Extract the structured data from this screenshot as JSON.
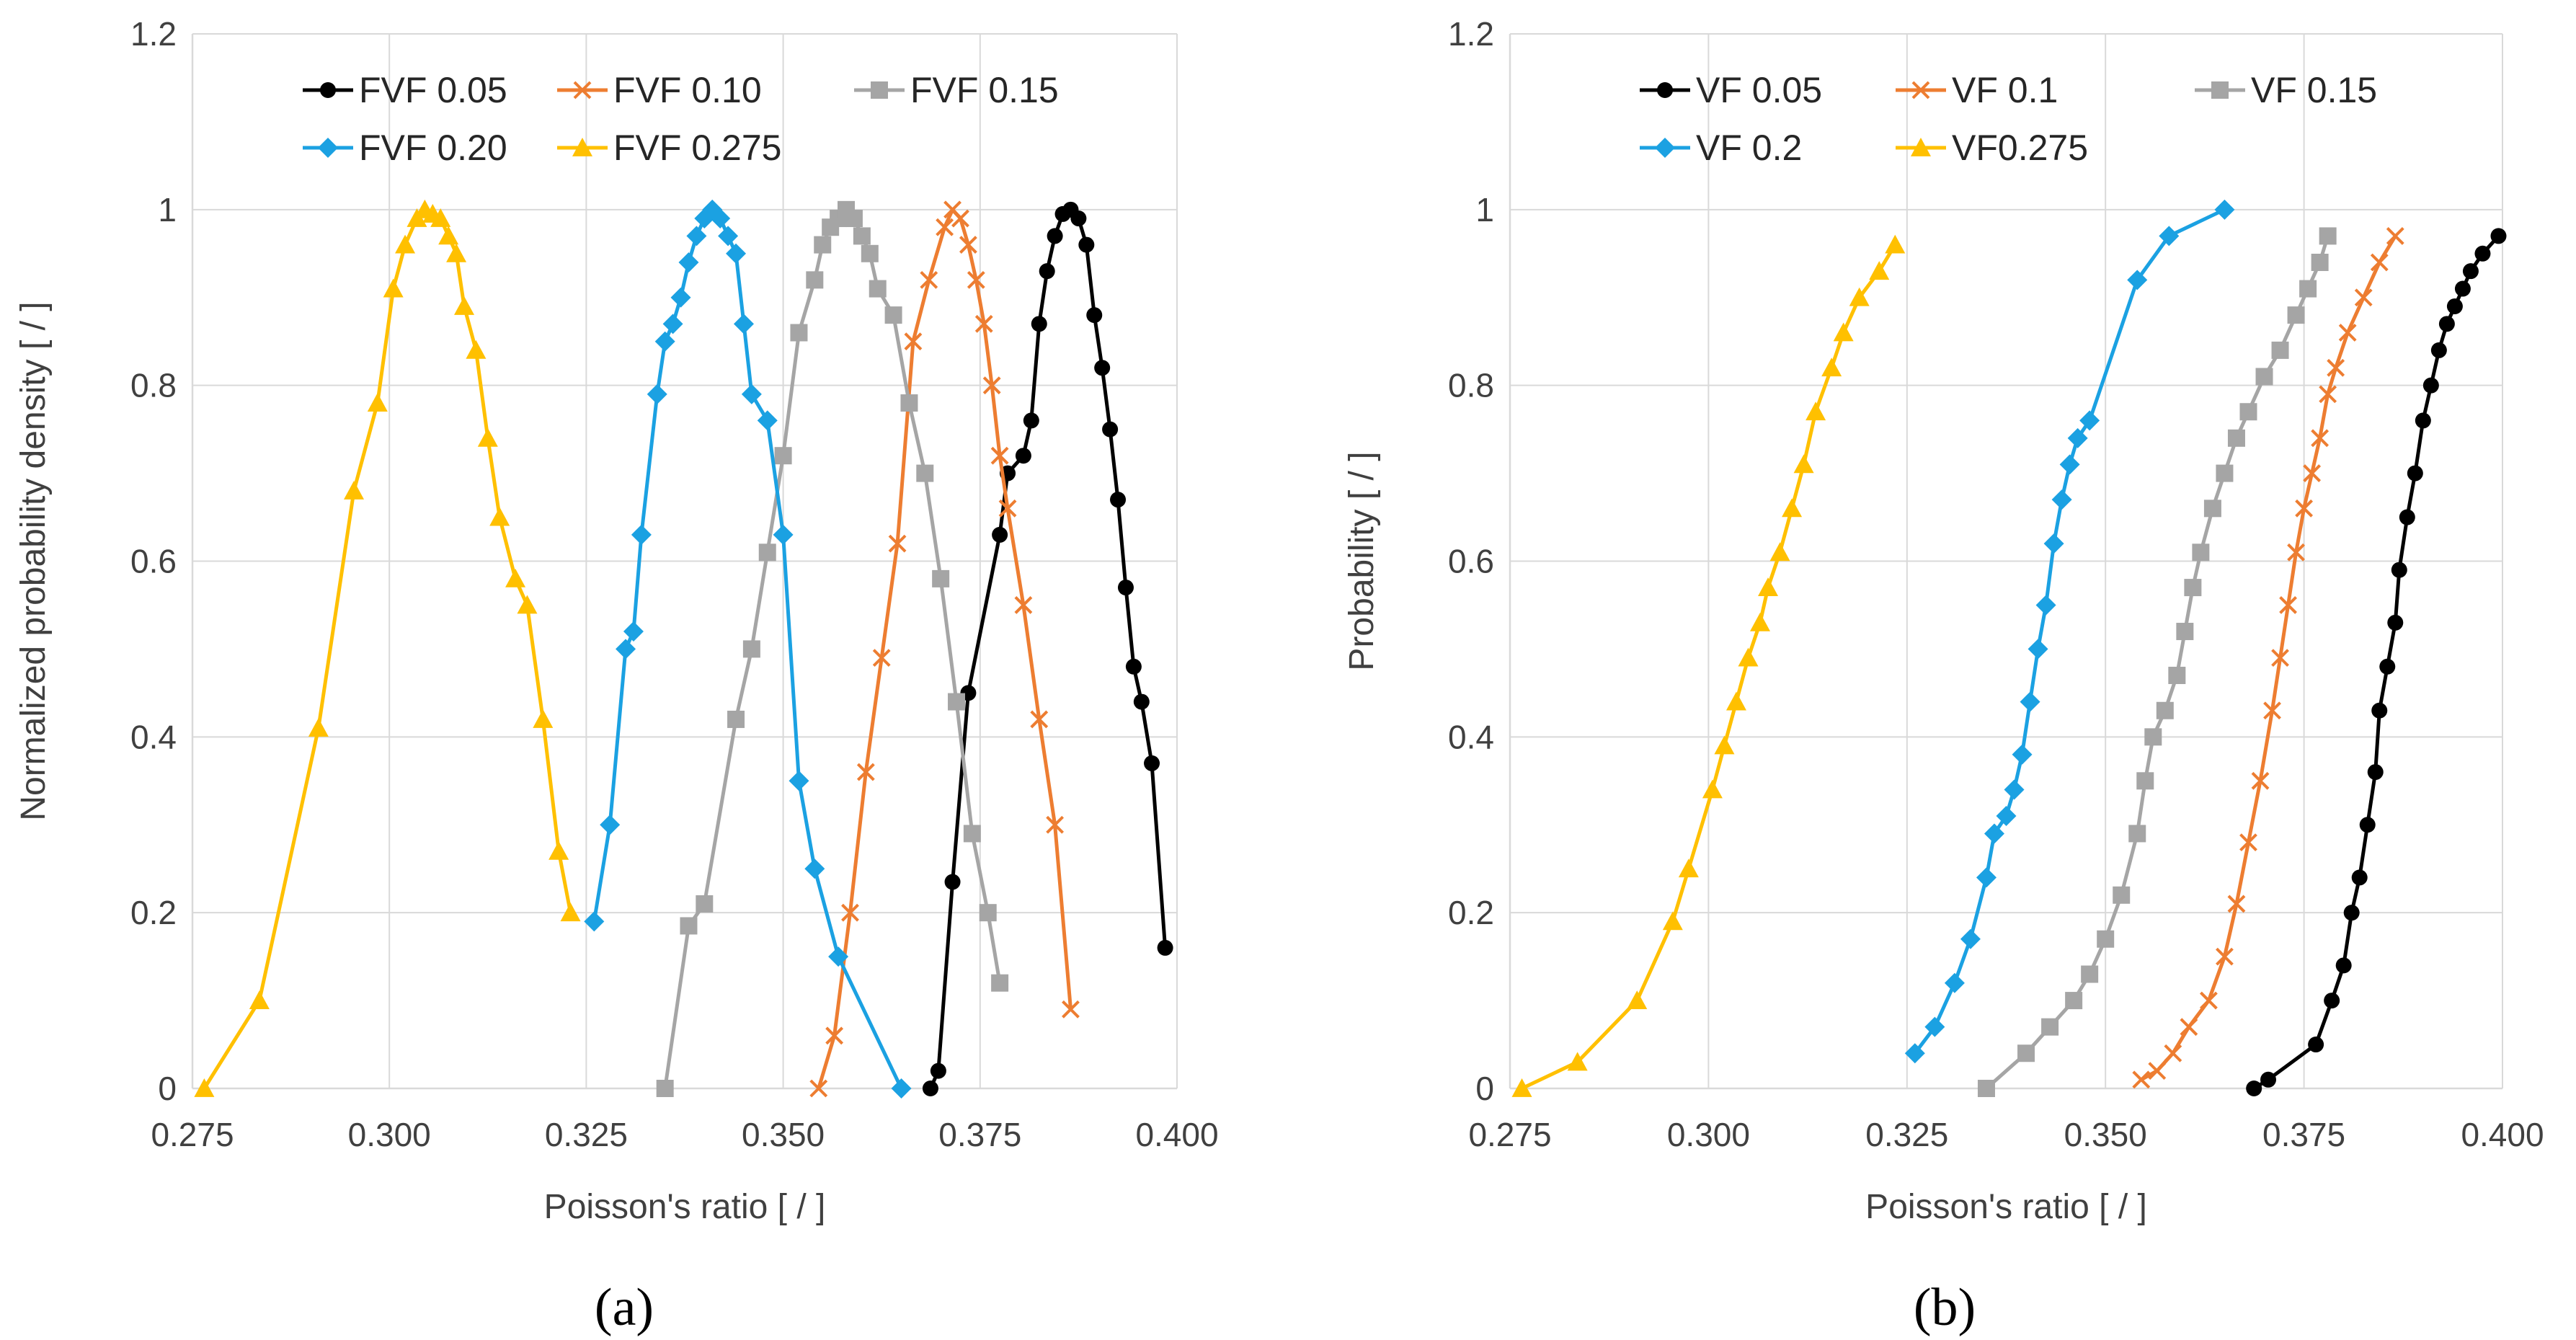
{
  "colors": {
    "black": "#000000",
    "orange": "#ED7D31",
    "gray": "#A5A5A5",
    "blue": "#1BA1E2",
    "gold": "#FFC000"
  },
  "captions": [
    "(a)",
    "(b)"
  ],
  "chart_data": [
    {
      "type": "line",
      "caption": "(a)",
      "title": "",
      "xlabel": "Poisson's ratio [ / ]",
      "ylabel": "Normalized probability density [ / ]",
      "xlim": [
        0.275,
        0.4
      ],
      "ylim": [
        0,
        1.2
      ],
      "xticks": [
        "0.275",
        "0.300",
        "0.325",
        "0.350",
        "0.375",
        "0.400"
      ],
      "yticks": [
        "0",
        "0.2",
        "0.4",
        "0.6",
        "0.8",
        "1",
        "1.2"
      ],
      "grid": true,
      "legend_position": "top",
      "series": [
        {
          "name": "FVF 0.05",
          "color": "#000000",
          "marker": "circle",
          "x": [
            0.3687,
            0.3697,
            0.3715,
            0.3735,
            0.3775,
            0.3785,
            0.3805,
            0.3815,
            0.3825,
            0.3835,
            0.3845,
            0.3855,
            0.3865,
            0.3875,
            0.3885,
            0.3895,
            0.3905,
            0.3915,
            0.3925,
            0.3935,
            0.3945,
            0.3955,
            0.3968,
            0.3985
          ],
          "y": [
            0.0,
            0.02,
            0.235,
            0.45,
            0.63,
            0.7,
            0.72,
            0.76,
            0.87,
            0.93,
            0.97,
            0.995,
            1.0,
            0.99,
            0.96,
            0.88,
            0.82,
            0.75,
            0.67,
            0.57,
            0.48,
            0.44,
            0.37,
            0.16
          ]
        },
        {
          "name": "FVF 0.10",
          "color": "#ED7D31",
          "marker": "x",
          "x": [
            0.3545,
            0.3565,
            0.3585,
            0.3605,
            0.3625,
            0.3645,
            0.3665,
            0.3685,
            0.3705,
            0.3715,
            0.3725,
            0.3735,
            0.3745,
            0.3755,
            0.3765,
            0.3775,
            0.3785,
            0.3805,
            0.3825,
            0.3845,
            0.3865
          ],
          "y": [
            0.0,
            0.06,
            0.2,
            0.36,
            0.49,
            0.62,
            0.85,
            0.92,
            0.98,
            1.0,
            0.99,
            0.96,
            0.92,
            0.87,
            0.8,
            0.72,
            0.66,
            0.55,
            0.42,
            0.3,
            0.09
          ]
        },
        {
          "name": "FVF 0.15",
          "color": "#A5A5A5",
          "marker": "square",
          "x": [
            0.335,
            0.338,
            0.34,
            0.344,
            0.346,
            0.348,
            0.35,
            0.352,
            0.354,
            0.355,
            0.356,
            0.357,
            0.358,
            0.359,
            0.36,
            0.361,
            0.362,
            0.364,
            0.366,
            0.368,
            0.37,
            0.372,
            0.374,
            0.376,
            0.3775
          ],
          "y": [
            0.0,
            0.185,
            0.21,
            0.42,
            0.5,
            0.61,
            0.72,
            0.86,
            0.92,
            0.96,
            0.98,
            0.99,
            1.0,
            0.99,
            0.97,
            0.95,
            0.91,
            0.88,
            0.78,
            0.7,
            0.58,
            0.44,
            0.29,
            0.2,
            0.12
          ]
        },
        {
          "name": "FVF 0.20",
          "color": "#1BA1E2",
          "marker": "diamond",
          "x": [
            0.326,
            0.328,
            0.33,
            0.331,
            0.332,
            0.334,
            0.335,
            0.336,
            0.337,
            0.338,
            0.339,
            0.34,
            0.341,
            0.342,
            0.343,
            0.344,
            0.345,
            0.346,
            0.348,
            0.35,
            0.352,
            0.354,
            0.357,
            0.365
          ],
          "y": [
            0.19,
            0.3,
            0.5,
            0.52,
            0.63,
            0.79,
            0.85,
            0.87,
            0.9,
            0.94,
            0.97,
            0.99,
            1.0,
            0.99,
            0.97,
            0.95,
            0.87,
            0.79,
            0.76,
            0.63,
            0.35,
            0.25,
            0.15,
            0.0
          ]
        },
        {
          "name": "FVF 0.275",
          "color": "#FFC000",
          "marker": "triangle",
          "x": [
            0.2765,
            0.2835,
            0.291,
            0.2955,
            0.2985,
            0.3005,
            0.302,
            0.3035,
            0.3045,
            0.3055,
            0.3065,
            0.3075,
            0.3085,
            0.3095,
            0.311,
            0.3125,
            0.314,
            0.316,
            0.3175,
            0.3195,
            0.3215,
            0.323
          ],
          "y": [
            0.0,
            0.1,
            0.41,
            0.68,
            0.78,
            0.91,
            0.96,
            0.99,
            1.0,
            0.995,
            0.99,
            0.97,
            0.95,
            0.89,
            0.84,
            0.74,
            0.65,
            0.58,
            0.55,
            0.42,
            0.27,
            0.2
          ]
        }
      ]
    },
    {
      "type": "line",
      "caption": "(b)",
      "title": "",
      "xlabel": "Poisson's ratio [ / ]",
      "ylabel": "Probability [ / ]",
      "xlim": [
        0.275,
        0.4
      ],
      "ylim": [
        0,
        1.2
      ],
      "xticks": [
        "0.275",
        "0.300",
        "0.325",
        "0.350",
        "0.375",
        "0.400"
      ],
      "yticks": [
        "0",
        "0.2",
        "0.4",
        "0.6",
        "0.8",
        "1",
        "1.2"
      ],
      "grid": true,
      "legend_position": "top",
      "series": [
        {
          "name": "VF 0.05",
          "color": "#000000",
          "marker": "circle",
          "x": [
            0.3687,
            0.3705,
            0.3765,
            0.3785,
            0.38,
            0.381,
            0.382,
            0.383,
            0.384,
            0.3845,
            0.3855,
            0.3865,
            0.387,
            0.388,
            0.389,
            0.39,
            0.391,
            0.392,
            0.393,
            0.394,
            0.395,
            0.396,
            0.3975,
            0.3995
          ],
          "y": [
            0.0,
            0.01,
            0.05,
            0.1,
            0.14,
            0.2,
            0.24,
            0.3,
            0.36,
            0.43,
            0.48,
            0.53,
            0.59,
            0.65,
            0.7,
            0.76,
            0.8,
            0.84,
            0.87,
            0.89,
            0.91,
            0.93,
            0.95,
            0.97
          ]
        },
        {
          "name": "VF 0.1",
          "color": "#ED7D31",
          "marker": "x",
          "x": [
            0.3545,
            0.3565,
            0.3585,
            0.3605,
            0.363,
            0.365,
            0.3665,
            0.368,
            0.3695,
            0.371,
            0.372,
            0.373,
            0.374,
            0.375,
            0.376,
            0.377,
            0.378,
            0.379,
            0.3805,
            0.3825,
            0.3845,
            0.3865
          ],
          "y": [
            0.01,
            0.02,
            0.04,
            0.07,
            0.1,
            0.15,
            0.21,
            0.28,
            0.35,
            0.43,
            0.49,
            0.55,
            0.61,
            0.66,
            0.7,
            0.74,
            0.79,
            0.82,
            0.86,
            0.9,
            0.94,
            0.97
          ]
        },
        {
          "name": "VF 0.15",
          "color": "#A5A5A5",
          "marker": "square",
          "x": [
            0.335,
            0.34,
            0.343,
            0.346,
            0.348,
            0.35,
            0.352,
            0.354,
            0.355,
            0.356,
            0.3575,
            0.359,
            0.36,
            0.361,
            0.362,
            0.3635,
            0.365,
            0.3665,
            0.368,
            0.37,
            0.372,
            0.374,
            0.3755,
            0.377,
            0.378
          ],
          "y": [
            0.0,
            0.04,
            0.07,
            0.1,
            0.13,
            0.17,
            0.22,
            0.29,
            0.35,
            0.4,
            0.43,
            0.47,
            0.52,
            0.57,
            0.61,
            0.66,
            0.7,
            0.74,
            0.77,
            0.81,
            0.84,
            0.88,
            0.91,
            0.94,
            0.97
          ]
        },
        {
          "name": "VF 0.2",
          "color": "#1BA1E2",
          "marker": "diamond",
          "x": [
            0.326,
            0.3285,
            0.331,
            0.333,
            0.335,
            0.336,
            0.3375,
            0.3385,
            0.3395,
            0.3405,
            0.3415,
            0.3425,
            0.3435,
            0.3445,
            0.3455,
            0.3465,
            0.348,
            0.354,
            0.358,
            0.365
          ],
          "y": [
            0.04,
            0.07,
            0.12,
            0.17,
            0.24,
            0.29,
            0.31,
            0.34,
            0.38,
            0.44,
            0.5,
            0.55,
            0.62,
            0.67,
            0.71,
            0.74,
            0.76,
            0.92,
            0.97,
            1.0
          ]
        },
        {
          "name": "VF0.275",
          "color": "#FFC000",
          "marker": "triangle",
          "x": [
            0.2765,
            0.2835,
            0.291,
            0.2955,
            0.2975,
            0.3005,
            0.302,
            0.3035,
            0.305,
            0.3065,
            0.3075,
            0.309,
            0.3105,
            0.312,
            0.3135,
            0.3155,
            0.317,
            0.319,
            0.3215,
            0.3235
          ],
          "y": [
            0.0,
            0.03,
            0.1,
            0.19,
            0.25,
            0.34,
            0.39,
            0.44,
            0.49,
            0.53,
            0.57,
            0.61,
            0.66,
            0.71,
            0.77,
            0.82,
            0.86,
            0.9,
            0.93,
            0.96
          ]
        }
      ]
    }
  ]
}
